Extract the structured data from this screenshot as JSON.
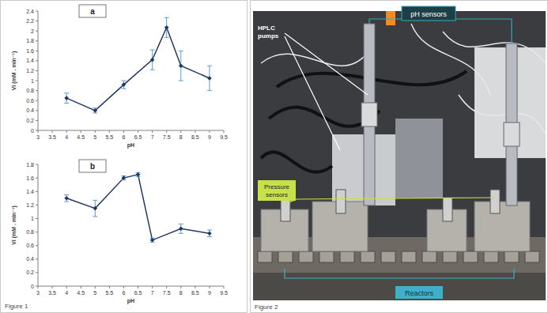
{
  "chart_data": [
    {
      "type": "line",
      "title": "a",
      "x_label": "pH",
      "y_label": "Vi (mM . min⁻¹)",
      "x": [
        4,
        5,
        6,
        7,
        7.5,
        8,
        9
      ],
      "values": [
        0.65,
        0.4,
        0.92,
        1.42,
        2.07,
        1.3,
        1.05
      ],
      "errors": [
        0.1,
        0.05,
        0.08,
        0.2,
        0.2,
        0.3,
        0.25
      ],
      "color": "#1f3864",
      "marker": "diamond",
      "grid": false,
      "xlim": [
        3,
        9.5
      ],
      "xticks": [
        3,
        3.5,
        4,
        4.5,
        5,
        5.5,
        6,
        6.5,
        7,
        7.5,
        8,
        8.5,
        9,
        9.5
      ],
      "ylim": [
        0,
        2.4
      ],
      "yticks": [
        0,
        0.2,
        0.4,
        0.6,
        0.8,
        1,
        1.2,
        1.4,
        1.6,
        1.8,
        2,
        2.2,
        2.4
      ]
    },
    {
      "type": "line",
      "title": "b",
      "x_label": "pH",
      "y_label": "Vi (mM . min⁻¹)",
      "x": [
        4,
        5,
        6,
        6.5,
        7,
        8,
        9
      ],
      "values": [
        1.3,
        1.15,
        1.6,
        1.65,
        0.68,
        0.85,
        0.78
      ],
      "errors": [
        0.05,
        0.12,
        0.03,
        0.03,
        0.03,
        0.07,
        0.05
      ],
      "color": "#1f3864",
      "marker": "diamond",
      "grid": false,
      "xlim": [
        3,
        9.5
      ],
      "xticks": [
        3,
        3.5,
        4,
        4.5,
        5,
        5.5,
        6,
        6.5,
        7,
        7.5,
        8,
        8.5,
        9,
        9.5
      ],
      "ylim": [
        0,
        1.8
      ],
      "yticks": [
        0,
        0.2,
        0.4,
        0.6,
        0.8,
        1,
        1.2,
        1.4,
        1.6,
        1.8
      ]
    }
  ],
  "figure1": {
    "caption": "Figure 1"
  },
  "figure2": {
    "caption": "Figure 2",
    "hplc_pumps": [
      "HPLC",
      "pumps"
    ],
    "ph_sensors": "pH sensors",
    "pressure_sensors": [
      "Pressure",
      "sensors"
    ],
    "reactors": "Reactors"
  }
}
